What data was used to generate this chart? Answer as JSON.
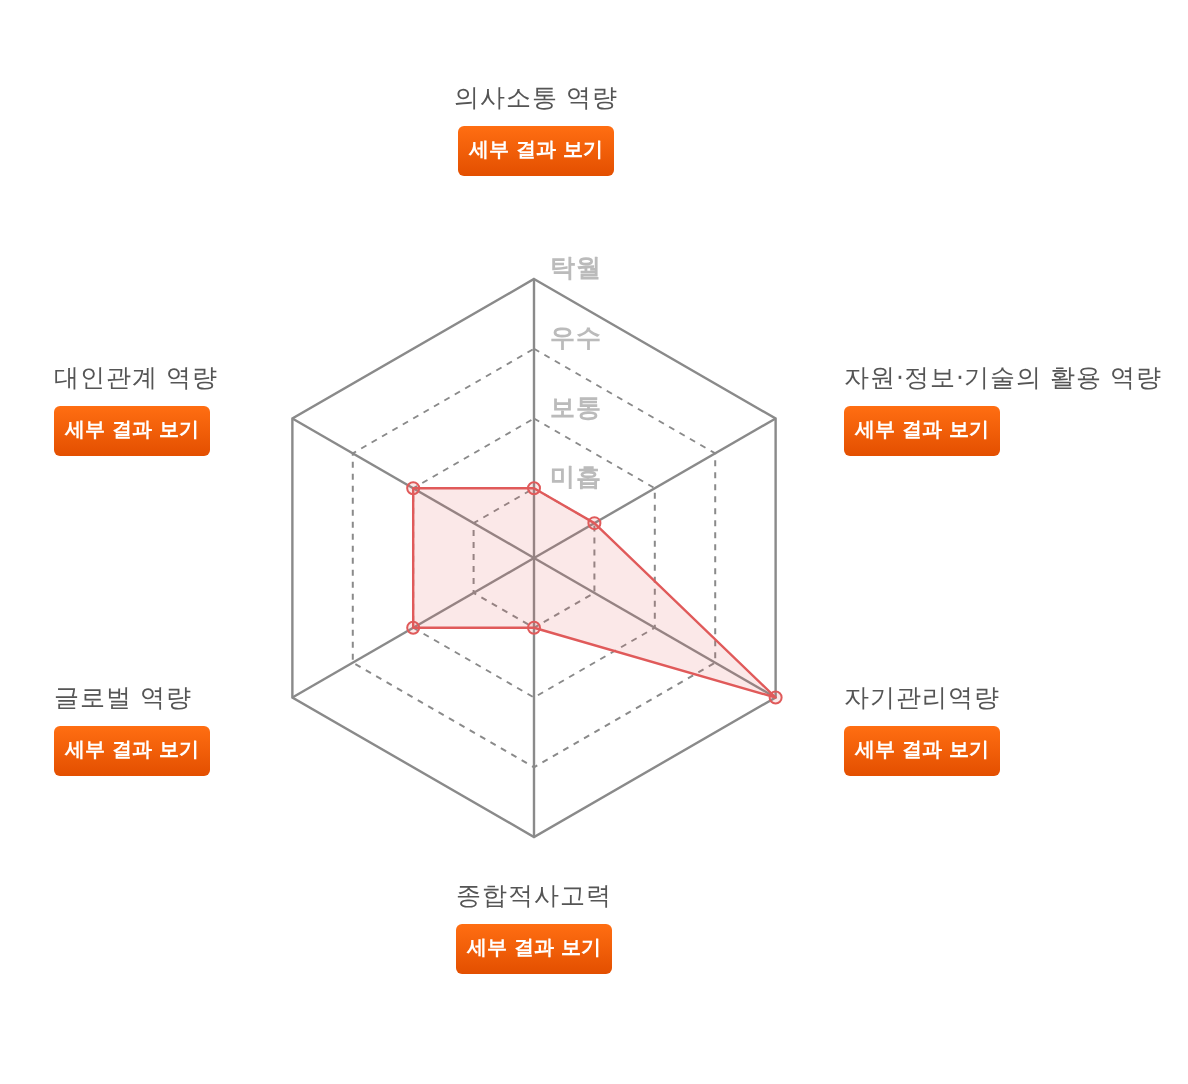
{
  "chart_data": {
    "type": "radar",
    "categories": [
      "의사소통 역량",
      "자원·정보·기술의 활용 역량",
      "자기관리역량",
      "종합적사고력",
      "글로벌 역량",
      "대인관계 역량"
    ],
    "series": [
      {
        "color": "#e05a5a",
        "values": [
          1,
          1,
          4,
          1,
          2,
          2
        ]
      }
    ],
    "ylim": [
      0,
      4
    ],
    "yticks": [
      {
        "value": 1,
        "label": "미흡"
      },
      {
        "value": 2,
        "label": "보통"
      },
      {
        "value": 3,
        "label": "우수"
      },
      {
        "value": 4,
        "label": "탁월"
      }
    ],
    "grid": true,
    "marker": "circle",
    "annotations": [
      "세부 결과 보기",
      "세부 결과 보기",
      "세부 결과 보기",
      "세부 결과 보기",
      "세부 결과 보기",
      "세부 결과 보기"
    ]
  }
}
